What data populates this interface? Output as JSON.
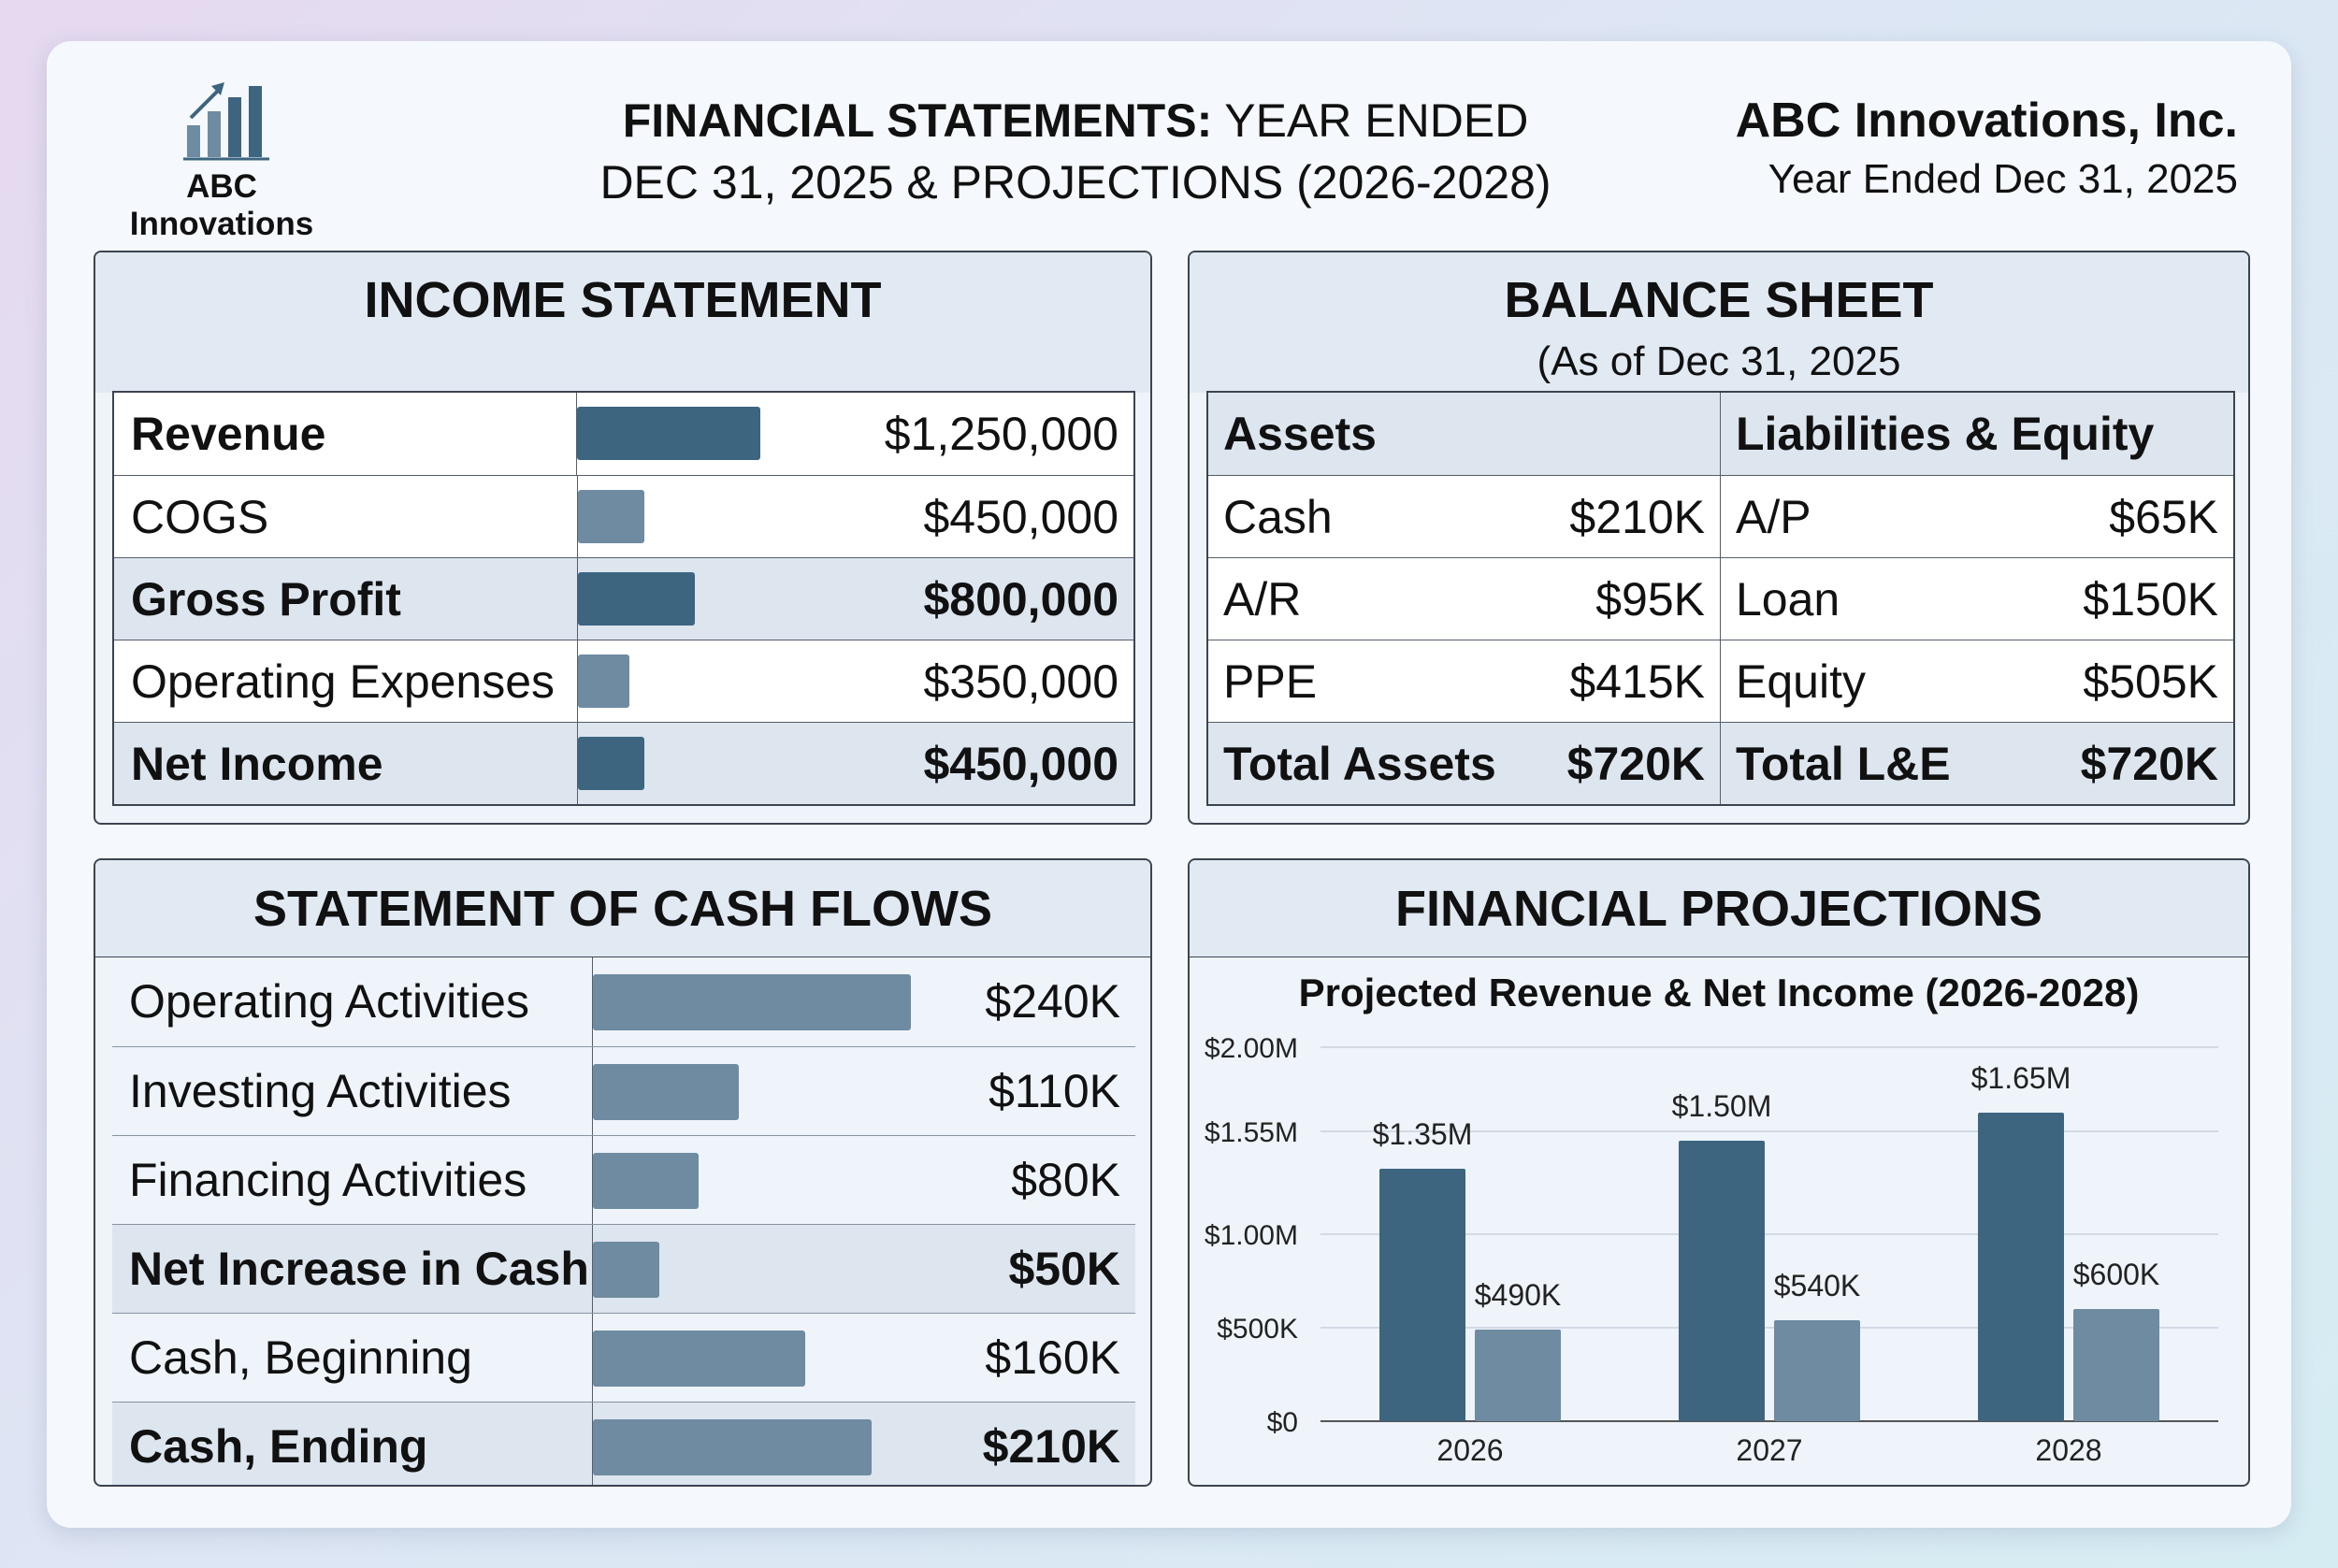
{
  "header": {
    "logo_text": "ABC Innovations",
    "title_bold": "FINANCIAL STATEMENTS:",
    "title_rest": " YEAR ENDED",
    "title_line2": "DEC 31, 2025 & PROJECTIONS (2026-2028)",
    "company_name": "ABC Innovations, Inc.",
    "company_period": "Year Ended Dec 31, 2025"
  },
  "colors": {
    "dark_bar": "#3d6580",
    "light_bar": "#6e8ba1",
    "panel_header": "#e1e9f3",
    "highlight_row": "#dde5ef"
  },
  "income_statement": {
    "title": "INCOME STATEMENT",
    "rows": [
      {
        "label": "Revenue",
        "value": "$1,250,000",
        "amount": 1250000,
        "bold_label": true,
        "bold_value": false,
        "highlight": false,
        "dark": true
      },
      {
        "label": "COGS",
        "value": "$450,000",
        "amount": 450000,
        "bold_label": false,
        "bold_value": false,
        "highlight": false,
        "dark": false
      },
      {
        "label": "Gross Profit",
        "value": "$800,000",
        "amount": 800000,
        "bold_label": true,
        "bold_value": true,
        "highlight": true,
        "dark": true
      },
      {
        "label": "Operating Expenses",
        "value": "$350,000",
        "amount": 350000,
        "bold_label": false,
        "bold_value": false,
        "highlight": false,
        "dark": false
      },
      {
        "label": "Net Income",
        "value": "$450,000",
        "amount": 450000,
        "bold_label": true,
        "bold_value": true,
        "highlight": true,
        "dark": true
      }
    ]
  },
  "balance_sheet": {
    "title": "BALANCE SHEET",
    "subtitle": "(As of Dec 31, 2025",
    "assets_header": "Assets",
    "liabilities_header": "Liabilities & Equity",
    "rows": [
      {
        "asset": "Cash",
        "asset_value": "$210K",
        "liability": "A/P",
        "liability_value": "$65K"
      },
      {
        "asset": "A/R",
        "asset_value": "$95K",
        "liability": "Loan",
        "liability_value": "$150K"
      },
      {
        "asset": "PPE",
        "asset_value": "$415K",
        "liability": "Equity",
        "liability_value": "$505K"
      },
      {
        "asset": "Total Assets",
        "asset_value": "$720K",
        "liability": "Total L&E",
        "liability_value": "$720K"
      }
    ]
  },
  "cash_flows": {
    "title": "STATEMENT OF CASH FLOWS",
    "rows": [
      {
        "label": "Operating Activities",
        "value": "$240K",
        "amount": 240,
        "bold": false,
        "highlight": false
      },
      {
        "label": "Investing Activities",
        "value": "$110K",
        "amount": 110,
        "bold": false,
        "highlight": false
      },
      {
        "label": "Financing Activities",
        "value": "$80K",
        "amount": 80,
        "bold": false,
        "highlight": false
      },
      {
        "label": "Net Increase in Cash",
        "value": "$50K",
        "amount": 50,
        "bold": true,
        "highlight": true
      },
      {
        "label": "Cash, Beginning",
        "value": "$160K",
        "amount": 160,
        "bold": false,
        "highlight": false
      },
      {
        "label": "Cash, Ending",
        "value": "$210K",
        "amount": 210,
        "bold": true,
        "highlight": true
      }
    ]
  },
  "projections": {
    "title": "FINANCIAL PROJECTIONS",
    "chart_title": "Projected Revenue & Net Income (2026-2028)"
  },
  "chart_data": {
    "type": "bar",
    "title": "Projected Revenue & Net Income (2026-2028)",
    "categories": [
      "2026",
      "2027",
      "2028"
    ],
    "series": [
      {
        "values": [
          1350000,
          1500000,
          1650000
        ],
        "labels": [
          "$1.35M",
          "$1.50M",
          "$1.65M"
        ],
        "color": "#3d6580"
      },
      {
        "values": [
          490000,
          540000,
          600000
        ],
        "labels": [
          "$490K",
          "$540K",
          "$600K"
        ],
        "color": "#6e8ba1"
      }
    ],
    "ylim": [
      0,
      2000000
    ],
    "yticks": [
      {
        "value": 0,
        "label": "$0"
      },
      {
        "value": 500000,
        "label": "$500K"
      },
      {
        "value": 1000000,
        "label": "$1.00M"
      },
      {
        "value": 1550000,
        "label": "$1.55M"
      },
      {
        "value": 2000000,
        "label": "$2.00M"
      }
    ],
    "xlabel": "",
    "ylabel": "",
    "grid": true,
    "legend": "none"
  }
}
